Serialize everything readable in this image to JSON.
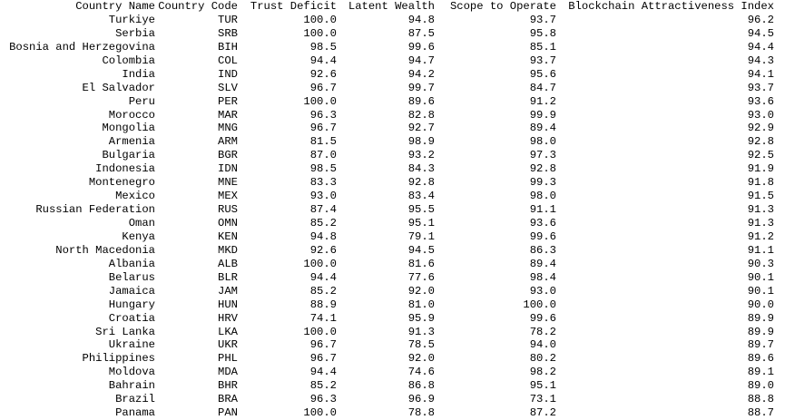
{
  "chart_data": {
    "type": "table",
    "title": "",
    "columns": [
      "Country Name",
      "Country Code",
      "Trust Deficit",
      "Latent Wealth",
      "Scope to Operate",
      "Blockchain Attractiveness Index"
    ],
    "rows": [
      [
        "Turkiye",
        "TUR",
        "100.0",
        "94.8",
        "93.7",
        "96.2"
      ],
      [
        "Serbia",
        "SRB",
        "100.0",
        "87.5",
        "95.8",
        "94.5"
      ],
      [
        "Bosnia and Herzegovina",
        "BIH",
        "98.5",
        "99.6",
        "85.1",
        "94.4"
      ],
      [
        "Colombia",
        "COL",
        "94.4",
        "94.7",
        "93.7",
        "94.3"
      ],
      [
        "India",
        "IND",
        "92.6",
        "94.2",
        "95.6",
        "94.1"
      ],
      [
        "El Salvador",
        "SLV",
        "96.7",
        "99.7",
        "84.7",
        "93.7"
      ],
      [
        "Peru",
        "PER",
        "100.0",
        "89.6",
        "91.2",
        "93.6"
      ],
      [
        "Morocco",
        "MAR",
        "96.3",
        "82.8",
        "99.9",
        "93.0"
      ],
      [
        "Mongolia",
        "MNG",
        "96.7",
        "92.7",
        "89.4",
        "92.9"
      ],
      [
        "Armenia",
        "ARM",
        "81.5",
        "98.9",
        "98.0",
        "92.8"
      ],
      [
        "Bulgaria",
        "BGR",
        "87.0",
        "93.2",
        "97.3",
        "92.5"
      ],
      [
        "Indonesia",
        "IDN",
        "98.5",
        "84.3",
        "92.8",
        "91.9"
      ],
      [
        "Montenegro",
        "MNE",
        "83.3",
        "92.8",
        "99.3",
        "91.8"
      ],
      [
        "Mexico",
        "MEX",
        "93.0",
        "83.4",
        "98.0",
        "91.5"
      ],
      [
        "Russian Federation",
        "RUS",
        "87.4",
        "95.5",
        "91.1",
        "91.3"
      ],
      [
        "Oman",
        "OMN",
        "85.2",
        "95.1",
        "93.6",
        "91.3"
      ],
      [
        "Kenya",
        "KEN",
        "94.8",
        "79.1",
        "99.6",
        "91.2"
      ],
      [
        "North Macedonia",
        "MKD",
        "92.6",
        "94.5",
        "86.3",
        "91.1"
      ],
      [
        "Albania",
        "ALB",
        "100.0",
        "81.6",
        "89.4",
        "90.3"
      ],
      [
        "Belarus",
        "BLR",
        "94.4",
        "77.6",
        "98.4",
        "90.1"
      ],
      [
        "Jamaica",
        "JAM",
        "85.2",
        "92.0",
        "93.0",
        "90.1"
      ],
      [
        "Hungary",
        "HUN",
        "88.9",
        "81.0",
        "100.0",
        "90.0"
      ],
      [
        "Croatia",
        "HRV",
        "74.1",
        "95.9",
        "99.6",
        "89.9"
      ],
      [
        "Sri Lanka",
        "LKA",
        "100.0",
        "91.3",
        "78.2",
        "89.9"
      ],
      [
        "Ukraine",
        "UKR",
        "96.7",
        "78.5",
        "94.0",
        "89.7"
      ],
      [
        "Philippines",
        "PHL",
        "96.7",
        "92.0",
        "80.2",
        "89.6"
      ],
      [
        "Moldova",
        "MDA",
        "94.4",
        "74.6",
        "98.2",
        "89.1"
      ],
      [
        "Bahrain",
        "BHR",
        "85.2",
        "86.8",
        "95.1",
        "89.0"
      ],
      [
        "Brazil",
        "BRA",
        "96.3",
        "96.9",
        "73.1",
        "88.8"
      ],
      [
        "Panama",
        "PAN",
        "100.0",
        "78.8",
        "87.2",
        "88.7"
      ]
    ]
  }
}
